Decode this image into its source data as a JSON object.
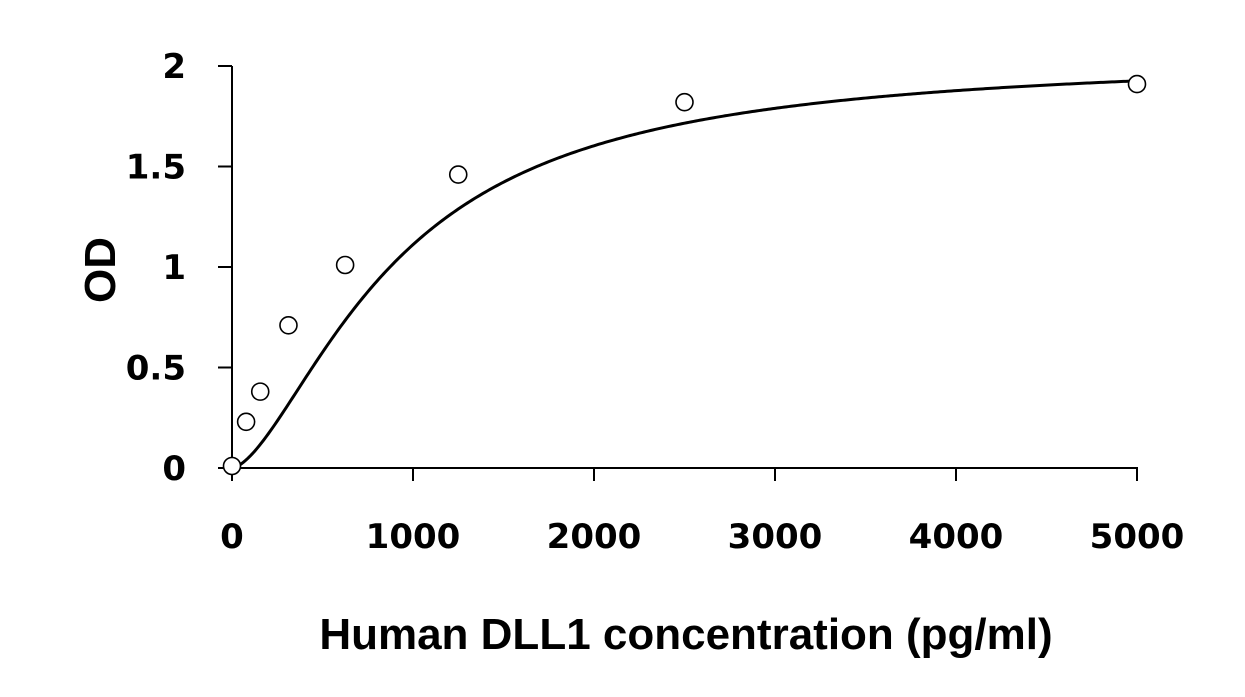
{
  "chart_data": {
    "type": "scatter",
    "title": "",
    "xlabel": "Human DLL1 concentration (pg/ml)",
    "ylabel": "OD",
    "xlim": [
      0,
      5000
    ],
    "ylim": [
      0,
      2
    ],
    "xticks": [
      0,
      1000,
      2000,
      3000,
      4000,
      5000
    ],
    "yticks": [
      0,
      0.5,
      1,
      1.5,
      2
    ],
    "xtick_labels": [
      "0",
      "1000",
      "2000",
      "3000",
      "4000",
      "5000"
    ],
    "ytick_labels": [
      "0",
      "0.5",
      "1",
      "1.5",
      "2"
    ],
    "grid": false,
    "legend": "none",
    "series": [
      {
        "marker": "open-circle",
        "points": [
          {
            "x": 0,
            "y": 0.01
          },
          {
            "x": 78,
            "y": 0.23
          },
          {
            "x": 156,
            "y": 0.38
          },
          {
            "x": 312,
            "y": 0.71
          },
          {
            "x": 625,
            "y": 1.01
          },
          {
            "x": 1250,
            "y": 1.46
          },
          {
            "x": 2500,
            "y": 1.82
          },
          {
            "x": 5000,
            "y": 1.91
          }
        ]
      }
    ],
    "fit_curve": {
      "model": "4PL",
      "A": 0.0,
      "B": 1.6,
      "C": 900,
      "D": 2.05
    },
    "colors": {
      "axis": "#000000",
      "marker": "#000000",
      "curve": "#000000"
    }
  }
}
